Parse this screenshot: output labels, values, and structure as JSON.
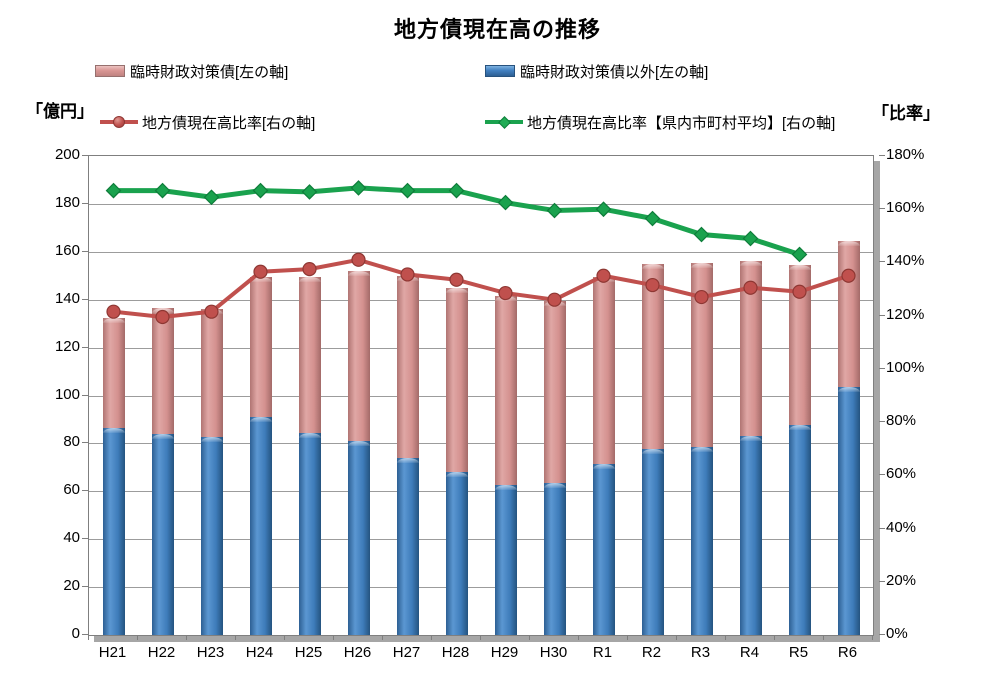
{
  "title": "地方債現在高の推移",
  "axis_titles": {
    "left": "「億円」",
    "right": "「比率」"
  },
  "chart_data": {
    "type": "combo: stacked bar (left axis) + 2 lines (right axis)",
    "title": "地方債現在高の推移",
    "categories": [
      "H21",
      "H22",
      "H23",
      "H24",
      "H25",
      "H26",
      "H27",
      "H28",
      "H29",
      "H30",
      "R1",
      "R2",
      "R3",
      "R4",
      "R5",
      "R6"
    ],
    "left_axis": {
      "title": "「億円」",
      "min": 0,
      "max": 200,
      "step": 20,
      "ticks": [
        "0",
        "20",
        "40",
        "60",
        "80",
        "100",
        "120",
        "140",
        "160",
        "180",
        "200"
      ]
    },
    "right_axis": {
      "title": "「比率」",
      "min": 0,
      "max": 180,
      "step": 20,
      "ticks": [
        "0%",
        "20%",
        "40%",
        "60%",
        "80%",
        "100%",
        "120%",
        "140%",
        "160%",
        "180%"
      ]
    },
    "grid": true,
    "legend_position": "top, two rows",
    "series": [
      {
        "name": "臨時財政対策債[左の軸]",
        "type": "bar",
        "stack_order": "top",
        "axis": "left",
        "color": "#D99694",
        "values": [
          46,
          52.5,
          53.5,
          58.5,
          65,
          71,
          76,
          77,
          79,
          76,
          78,
          77.5,
          77,
          73,
          67,
          61
        ]
      },
      {
        "name": "臨時財政対策債以外[左の軸]",
        "type": "bar",
        "stack_order": "bottom",
        "axis": "left",
        "color": "#4180C0",
        "values": [
          86.5,
          84,
          82.5,
          91,
          84.5,
          81,
          74,
          68,
          62.5,
          63.5,
          71.5,
          77.5,
          78.5,
          83,
          87.5,
          103.5
        ]
      },
      {
        "name": "地方債現在高比率[右の軸]",
        "type": "line",
        "axis": "right",
        "marker": "circle",
        "color": "#C0504D",
        "values": [
          121.5,
          119.5,
          121.5,
          136.5,
          137.5,
          141,
          135.5,
          133.5,
          128.5,
          126,
          135,
          131.5,
          127,
          130.5,
          129,
          135
        ]
      },
      {
        "name": "地方債現在高比率【県内市町村平均】[右の軸]",
        "type": "line",
        "axis": "right",
        "marker": "diamond",
        "color": "#1AA24E",
        "values": [
          167,
          167,
          164.5,
          167,
          166.5,
          168,
          167,
          167,
          162.5,
          159.5,
          160,
          156.5,
          150.5,
          149,
          143,
          null
        ]
      }
    ]
  }
}
